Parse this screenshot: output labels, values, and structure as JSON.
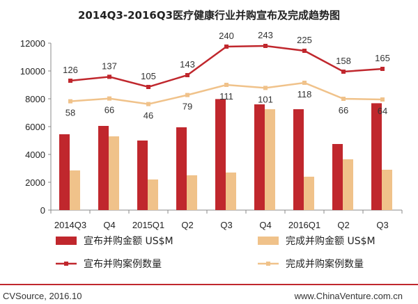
{
  "colors": {
    "announced": "#C0272D",
    "completed": "#F0C28A",
    "footer_line": "#C0272D"
  },
  "chart_data": {
    "type": "bar",
    "title": "2014Q3-2016Q3医疗健康行业并购宣布及完成趋势图",
    "categories": [
      "2014Q3",
      "Q4",
      "2015Q1",
      "Q2",
      "Q3",
      "Q4",
      "2016Q1",
      "Q2",
      "Q3"
    ],
    "ylim": [
      0,
      12000
    ],
    "yticks": [
      "0",
      "2000",
      "4000",
      "6000",
      "8000",
      "10000",
      "12000"
    ],
    "grid": false,
    "legend_position": "bottom",
    "series": [
      {
        "name": "宣布并购金额 US$M",
        "type": "bar",
        "values": [
          5450,
          6050,
          5000,
          5950,
          7980,
          7600,
          7250,
          4750,
          7680
        ]
      },
      {
        "name": "完成并购金额 US$M",
        "type": "bar",
        "values": [
          2850,
          5300,
          2200,
          2500,
          2700,
          7250,
          2400,
          3650,
          2900
        ]
      },
      {
        "name": "宣布并购案例数量",
        "type": "line",
        "values": [
          9300,
          9580,
          8850,
          9700,
          11750,
          11800,
          11450,
          9950,
          10150
        ],
        "labels": [
          "126",
          "137",
          "105",
          "143",
          "240",
          "243",
          "225",
          "158",
          "165"
        ]
      },
      {
        "name": "完成并购案例数量",
        "type": "line",
        "values": [
          7820,
          8020,
          7620,
          8270,
          9000,
          8780,
          9150,
          8000,
          7950
        ],
        "labels": [
          "58",
          "66",
          "46",
          "79",
          "111",
          "101",
          "118",
          "66",
          "64"
        ]
      }
    ]
  },
  "footer": {
    "source": "CVSource, 2016.10",
    "website": "www.ChinaVenture.com.cn"
  }
}
